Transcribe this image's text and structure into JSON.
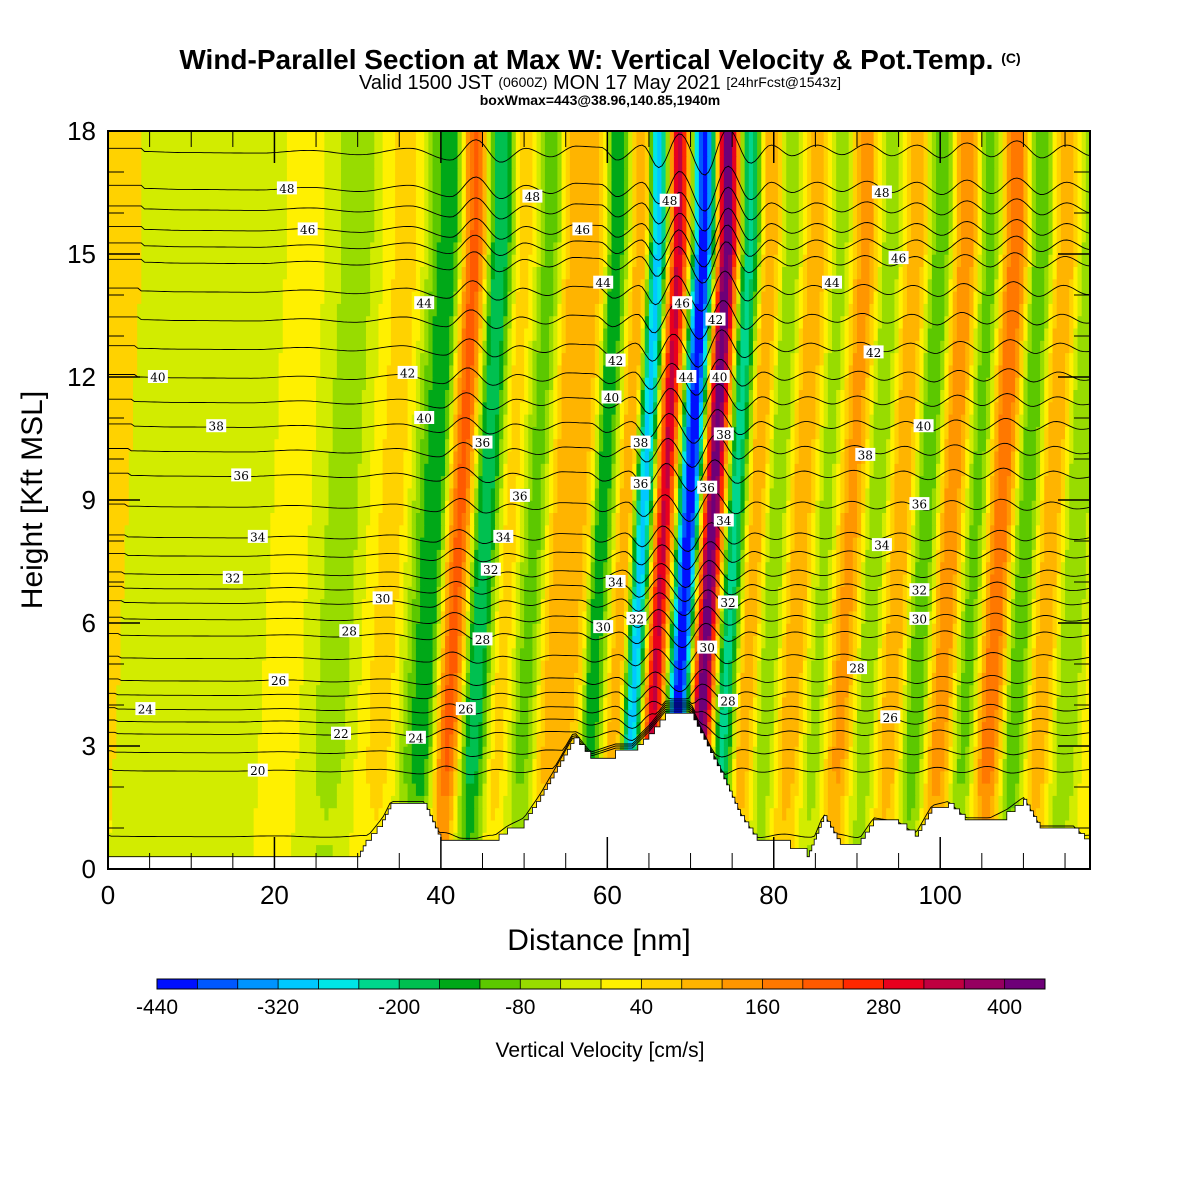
{
  "header": {
    "title": "Wind-Parallel Section at Max W: Vertical Velocity & Pot.Temp.",
    "title_mark": "(C)",
    "subtitle_a": "Valid 1500 JST",
    "subtitle_b": "(0600Z)",
    "subtitle_c": "MON 17 May 2021",
    "subtitle_d": "[24hrFcst@1543z]",
    "subtitle_2": "boxWmax=443@38.96,140.85,1940m"
  },
  "colorbar": {
    "label": "Vertical Velocity [cm/s]",
    "tick_labels": [
      "-440",
      "-320",
      "-200",
      "-80",
      "40",
      "160",
      "280",
      "400"
    ],
    "colors": [
      "#0010ff",
      "#0058ff",
      "#0094ff",
      "#00c8ff",
      "#00e6e6",
      "#00d68c",
      "#00c050",
      "#00a818",
      "#5cc800",
      "#98dc00",
      "#d2ec00",
      "#fff000",
      "#ffd200",
      "#ffb400",
      "#ff9600",
      "#ff7800",
      "#ff5a00",
      "#ff2800",
      "#e8001e",
      "#c00040",
      "#960060",
      "#6e0078"
    ]
  },
  "chart_data": {
    "type": "heatmap",
    "title": "Wind-Parallel Section at Max W: Vertical Velocity & Pot.Temp.",
    "xlabel": "Distance [nm]",
    "ylabel": "Height [Kft MSL]",
    "xlim": [
      0,
      118
    ],
    "ylim": [
      0,
      18
    ],
    "x_ticks": [
      0,
      20,
      40,
      60,
      80,
      100
    ],
    "y_ticks": [
      0,
      3,
      6,
      9,
      12,
      15,
      18
    ],
    "field": "Vertical Velocity [cm/s]",
    "color_levels": [
      -440,
      -400,
      -360,
      -320,
      -280,
      -240,
      -200,
      -160,
      -120,
      -80,
      -40,
      0,
      40,
      80,
      120,
      160,
      200,
      240,
      280,
      320,
      360,
      400,
      440
    ],
    "max_vertical_velocity": 443,
    "bands": [
      {
        "x": 0,
        "w": 0
      },
      {
        "x": 5,
        "w": -20
      },
      {
        "x": 14,
        "w": -30
      },
      {
        "x": 20,
        "w": 20
      },
      {
        "x": 26,
        "w": -60
      },
      {
        "x": 32,
        "w": 60
      },
      {
        "x": 37,
        "w": -160
      },
      {
        "x": 40,
        "w": 220
      },
      {
        "x": 43,
        "w": -200
      },
      {
        "x": 46,
        "w": 60
      },
      {
        "x": 49,
        "w": -100
      },
      {
        "x": 52,
        "w": 100
      },
      {
        "x": 55,
        "w": 80
      },
      {
        "x": 57,
        "w": -160
      },
      {
        "x": 60,
        "w": 120
      },
      {
        "x": 62,
        "w": -300
      },
      {
        "x": 64.5,
        "w": 330
      },
      {
        "x": 67.5,
        "w": -440
      },
      {
        "x": 70.3,
        "w": 430
      },
      {
        "x": 73,
        "w": -220
      },
      {
        "x": 75.5,
        "w": 120
      },
      {
        "x": 78,
        "w": -80
      },
      {
        "x": 81,
        "w": 120
      },
      {
        "x": 84,
        "w": -60
      },
      {
        "x": 87,
        "w": 140
      },
      {
        "x": 90,
        "w": -80
      },
      {
        "x": 93,
        "w": 120
      },
      {
        "x": 96,
        "w": -120
      },
      {
        "x": 99,
        "w": 160
      },
      {
        "x": 102,
        "w": -100
      },
      {
        "x": 105,
        "w": 200
      },
      {
        "x": 108,
        "w": -120
      },
      {
        "x": 111,
        "w": 120
      },
      {
        "x": 114,
        "w": -80
      },
      {
        "x": 118,
        "w": 60
      }
    ],
    "terrain": [
      {
        "x": 0,
        "h": 0.3
      },
      {
        "x": 30,
        "h": 0.3
      },
      {
        "x": 31,
        "h": 0.7
      },
      {
        "x": 33,
        "h": 1.2
      },
      {
        "x": 34,
        "h": 1.6
      },
      {
        "x": 38,
        "h": 1.6
      },
      {
        "x": 40,
        "h": 0.7
      },
      {
        "x": 46,
        "h": 0.7
      },
      {
        "x": 48,
        "h": 1.0
      },
      {
        "x": 50,
        "h": 1.2
      },
      {
        "x": 52,
        "h": 1.8
      },
      {
        "x": 54,
        "h": 2.5
      },
      {
        "x": 56,
        "h": 3.2
      },
      {
        "x": 58,
        "h": 2.7
      },
      {
        "x": 61,
        "h": 2.9
      },
      {
        "x": 63,
        "h": 2.9
      },
      {
        "x": 65,
        "h": 3.3
      },
      {
        "x": 67,
        "h": 3.8
      },
      {
        "x": 70,
        "h": 3.8
      },
      {
        "x": 72,
        "h": 3.0
      },
      {
        "x": 74,
        "h": 2.2
      },
      {
        "x": 76,
        "h": 1.3
      },
      {
        "x": 78,
        "h": 0.7
      },
      {
        "x": 82,
        "h": 0.5
      },
      {
        "x": 84,
        "h": 0.3
      },
      {
        "x": 86,
        "h": 1.3
      },
      {
        "x": 88,
        "h": 0.6
      },
      {
        "x": 90,
        "h": 0.6
      },
      {
        "x": 92,
        "h": 1.2
      },
      {
        "x": 95,
        "h": 1.1
      },
      {
        "x": 97,
        "h": 0.8
      },
      {
        "x": 99,
        "h": 1.5
      },
      {
        "x": 101,
        "h": 1.6
      },
      {
        "x": 103,
        "h": 1.2
      },
      {
        "x": 106,
        "h": 1.2
      },
      {
        "x": 108,
        "h": 1.4
      },
      {
        "x": 110,
        "h": 1.7
      },
      {
        "x": 112,
        "h": 1.0
      },
      {
        "x": 116,
        "h": 1.0
      },
      {
        "x": 118,
        "h": 0.6
      }
    ],
    "theta_contours": {
      "interval": 1,
      "base": [
        {
          "level": 19,
          "y": 0.8
        },
        {
          "level": 20,
          "y": 2.4
        },
        {
          "level": 22,
          "y": 3.3
        },
        {
          "level": 24,
          "y": 3.9
        },
        {
          "level": 26,
          "y": 4.6
        },
        {
          "level": 28,
          "y": 5.7
        },
        {
          "level": 30,
          "y": 6.5
        },
        {
          "level": 32,
          "y": 7.2
        },
        {
          "level": 34,
          "y": 8.1
        },
        {
          "level": 36,
          "y": 9.6
        },
        {
          "level": 38,
          "y": 10.8
        },
        {
          "level": 40,
          "y": 12.0
        },
        {
          "level": 42,
          "y": 13.4
        },
        {
          "level": 44,
          "y": 14.8
        },
        {
          "level": 46,
          "y": 15.6
        },
        {
          "level": 48,
          "y": 16.6
        },
        {
          "level": 49,
          "y": 17.5
        }
      ],
      "labels": [
        {
          "text": "48",
          "x": 21.5,
          "y": 16.6
        },
        {
          "text": "46",
          "x": 24,
          "y": 15.6
        },
        {
          "text": "44",
          "x": 38,
          "y": 13.8
        },
        {
          "text": "42",
          "x": 36,
          "y": 12.1
        },
        {
          "text": "40",
          "x": 6,
          "y": 12.0
        },
        {
          "text": "40",
          "x": 38,
          "y": 11.0
        },
        {
          "text": "38",
          "x": 13,
          "y": 10.8
        },
        {
          "text": "36",
          "x": 16,
          "y": 9.6
        },
        {
          "text": "34",
          "x": 18,
          "y": 8.1
        },
        {
          "text": "32",
          "x": 15,
          "y": 7.1
        },
        {
          "text": "30",
          "x": 33,
          "y": 6.6
        },
        {
          "text": "28",
          "x": 29,
          "y": 5.8
        },
        {
          "text": "26",
          "x": 20.5,
          "y": 4.6
        },
        {
          "text": "24",
          "x": 4.5,
          "y": 3.9
        },
        {
          "text": "22",
          "x": 28,
          "y": 3.3
        },
        {
          "text": "20",
          "x": 18,
          "y": 2.4
        },
        {
          "text": "24",
          "x": 37,
          "y": 3.2
        },
        {
          "text": "26",
          "x": 43,
          "y": 3.9
        },
        {
          "text": "28",
          "x": 45,
          "y": 5.6
        },
        {
          "text": "32",
          "x": 46,
          "y": 7.3
        },
        {
          "text": "34",
          "x": 47.5,
          "y": 8.1
        },
        {
          "text": "36",
          "x": 49.5,
          "y": 9.1
        },
        {
          "text": "36",
          "x": 45,
          "y": 10.4
        },
        {
          "text": "48",
          "x": 51,
          "y": 16.4
        },
        {
          "text": "46",
          "x": 57,
          "y": 15.6
        },
        {
          "text": "44",
          "x": 59.5,
          "y": 14.3
        },
        {
          "text": "42",
          "x": 61,
          "y": 12.4
        },
        {
          "text": "40",
          "x": 60.5,
          "y": 11.5
        },
        {
          "text": "38",
          "x": 64,
          "y": 10.4
        },
        {
          "text": "36",
          "x": 64,
          "y": 9.4
        },
        {
          "text": "34",
          "x": 61,
          "y": 7.0
        },
        {
          "text": "32",
          "x": 63.5,
          "y": 6.1
        },
        {
          "text": "30",
          "x": 59.5,
          "y": 5.9
        },
        {
          "text": "48",
          "x": 67.5,
          "y": 16.3
        },
        {
          "text": "46",
          "x": 69,
          "y": 13.8
        },
        {
          "text": "44",
          "x": 69.5,
          "y": 12.0
        },
        {
          "text": "42",
          "x": 73,
          "y": 13.4
        },
        {
          "text": "40",
          "x": 73.5,
          "y": 12.0
        },
        {
          "text": "38",
          "x": 74,
          "y": 10.6
        },
        {
          "text": "36",
          "x": 72,
          "y": 9.3
        },
        {
          "text": "34",
          "x": 74,
          "y": 8.5
        },
        {
          "text": "32",
          "x": 74.5,
          "y": 6.5
        },
        {
          "text": "30",
          "x": 72,
          "y": 5.4
        },
        {
          "text": "28",
          "x": 74.5,
          "y": 4.1
        },
        {
          "text": "48",
          "x": 93,
          "y": 16.5
        },
        {
          "text": "46",
          "x": 95,
          "y": 14.9
        },
        {
          "text": "44",
          "x": 87,
          "y": 14.3
        },
        {
          "text": "42",
          "x": 92,
          "y": 12.6
        },
        {
          "text": "40",
          "x": 98,
          "y": 10.8
        },
        {
          "text": "38",
          "x": 91,
          "y": 10.1
        },
        {
          "text": "36",
          "x": 97.5,
          "y": 8.9
        },
        {
          "text": "34",
          "x": 93,
          "y": 7.9
        },
        {
          "text": "32",
          "x": 97.5,
          "y": 6.8
        },
        {
          "text": "30",
          "x": 97.5,
          "y": 6.1
        },
        {
          "text": "28",
          "x": 90,
          "y": 4.9
        },
        {
          "text": "26",
          "x": 94,
          "y": 3.7
        }
      ]
    }
  }
}
